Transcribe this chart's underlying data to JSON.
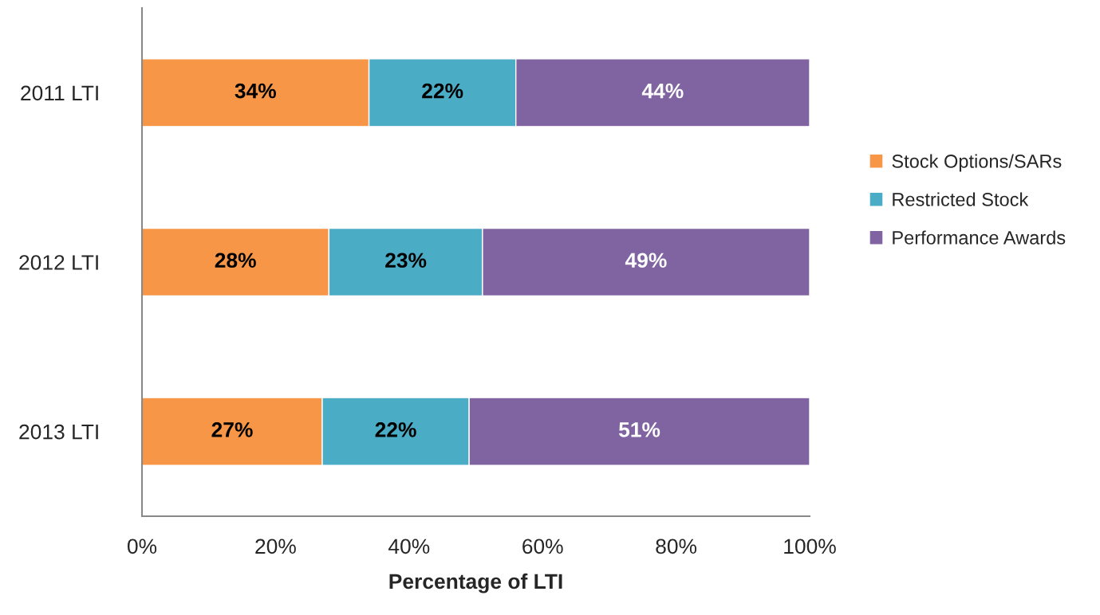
{
  "chart_data": {
    "type": "bar",
    "orientation": "horizontal",
    "stacked": true,
    "xlabel": "Percentage of LTI",
    "categories": [
      "2011 LTI",
      "2012 LTI",
      "2013 LTI"
    ],
    "series": [
      {
        "name": "Stock Options/SARs",
        "color": "#f79646",
        "values": [
          34,
          28,
          27
        ],
        "value_labels": [
          "34%",
          "28%",
          "27%"
        ]
      },
      {
        "name": "Restricted Stock",
        "color": "#4bacc6",
        "values": [
          22,
          23,
          22
        ],
        "value_labels": [
          "22%",
          "23%",
          "22%"
        ]
      },
      {
        "name": "Performance Awards",
        "color": "#8064a2",
        "values": [
          44,
          49,
          51
        ],
        "value_labels": [
          "44%",
          "49%",
          "51%"
        ]
      }
    ],
    "xlim": [
      0,
      100
    ],
    "xticks": [
      {
        "value": 0,
        "label": "0%"
      },
      {
        "value": 20,
        "label": "20%"
      },
      {
        "value": 40,
        "label": "40%"
      },
      {
        "value": 60,
        "label": "60%"
      },
      {
        "value": 80,
        "label": "80%"
      },
      {
        "value": 100,
        "label": "100%"
      }
    ],
    "grid": false,
    "legend": "right"
  }
}
